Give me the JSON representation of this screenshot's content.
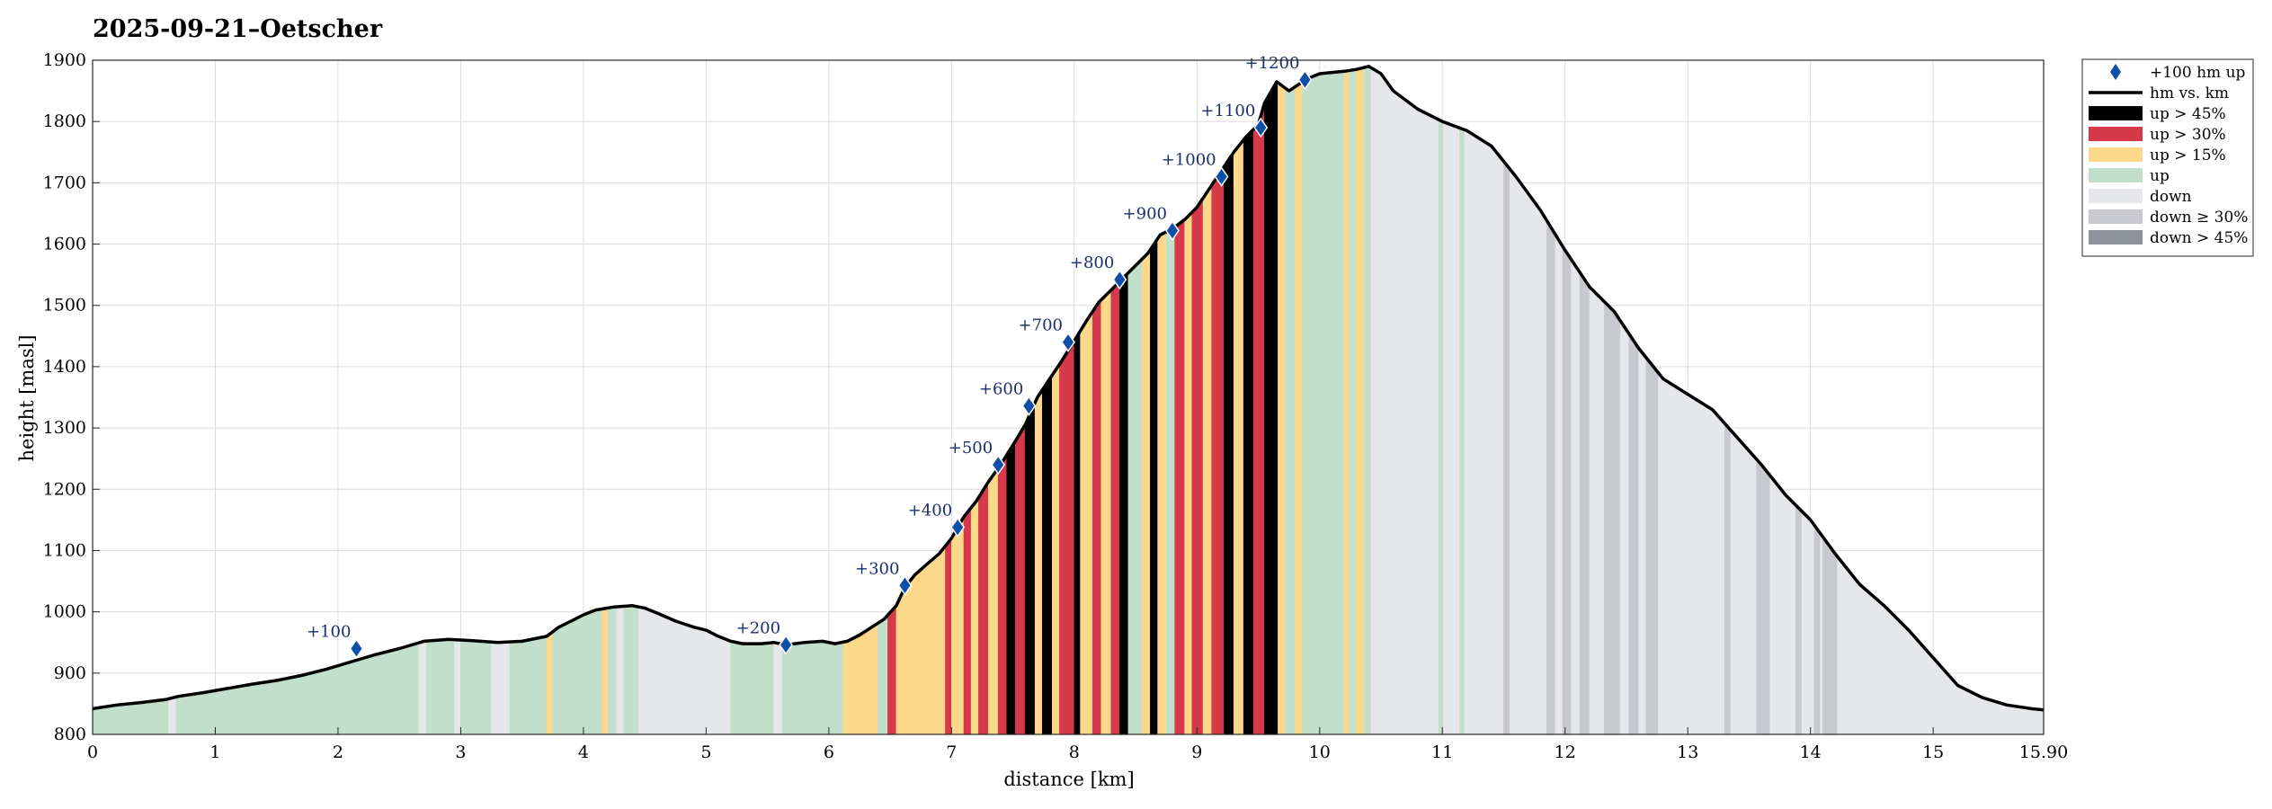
{
  "chart_data": {
    "type": "area",
    "title": "2025-09-21–Oetscher",
    "xlabel": "distance [km]",
    "ylabel": "height [masl]",
    "xlim": [
      0,
      15.9
    ],
    "ylim": [
      800,
      1900
    ],
    "grid": true,
    "legend_position": "outside-top-right",
    "xticks": [
      0,
      1,
      2,
      3,
      4,
      5,
      6,
      7,
      8,
      9,
      10,
      11,
      12,
      13,
      14,
      15,
      15.9
    ],
    "xtick_labels": [
      "0",
      "1",
      "2",
      "3",
      "4",
      "5",
      "6",
      "7",
      "8",
      "9",
      "10",
      "11",
      "12",
      "13",
      "14",
      "15",
      "15.90"
    ],
    "yticks": [
      800,
      900,
      1000,
      1100,
      1200,
      1300,
      1400,
      1500,
      1600,
      1700,
      1800,
      1900
    ],
    "ytick_labels": [
      "800",
      "900",
      "1000",
      "1100",
      "1200",
      "1300",
      "1400",
      "1500",
      "1600",
      "1700",
      "1800",
      "1900"
    ],
    "legend": [
      {
        "label": "+100 hm up",
        "kind": "marker",
        "color": "#0f4fa8"
      },
      {
        "label": "hm vs. km",
        "kind": "line",
        "color": "#000000"
      },
      {
        "label": "up > 45%",
        "kind": "patch",
        "color": "#000000"
      },
      {
        "label": "up > 30%",
        "kind": "patch",
        "color": "#d63a4a"
      },
      {
        "label": "up > 15%",
        "kind": "patch",
        "color": "#fcd98a"
      },
      {
        "label": "up",
        "kind": "patch",
        "color": "#c2dfcb"
      },
      {
        "label": "down",
        "kind": "patch",
        "color": "#e6e7ea"
      },
      {
        "label": "down ≥ 30%",
        "kind": "patch",
        "color": "#c8c9cf"
      },
      {
        "label": "down > 45%",
        "kind": "patch",
        "color": "#8e929c"
      }
    ],
    "category_colors": {
      "up45": "#000000",
      "up30": "#d63a4a",
      "up15": "#fcd98a",
      "up": "#c2dfcb",
      "down": "#e6e7ea",
      "down30": "#c8c9cf",
      "down45": "#8e929c"
    },
    "profile": [
      [
        0,
        842
      ],
      [
        0.1,
        845
      ],
      [
        0.2,
        848
      ],
      [
        0.4,
        852
      ],
      [
        0.6,
        857
      ],
      [
        0.7,
        862
      ],
      [
        0.9,
        868
      ],
      [
        1.1,
        875
      ],
      [
        1.3,
        882
      ],
      [
        1.5,
        888
      ],
      [
        1.7,
        896
      ],
      [
        1.9,
        906
      ],
      [
        2.1,
        918
      ],
      [
        2.3,
        930
      ],
      [
        2.5,
        940
      ],
      [
        2.7,
        952
      ],
      [
        2.9,
        955
      ],
      [
        3.1,
        953
      ],
      [
        3.3,
        950
      ],
      [
        3.5,
        952
      ],
      [
        3.7,
        960
      ],
      [
        3.8,
        975
      ],
      [
        3.9,
        985
      ],
      [
        4.0,
        995
      ],
      [
        4.1,
        1003
      ],
      [
        4.25,
        1008
      ],
      [
        4.4,
        1010
      ],
      [
        4.5,
        1006
      ],
      [
        4.6,
        998
      ],
      [
        4.75,
        985
      ],
      [
        4.9,
        975
      ],
      [
        5.0,
        970
      ],
      [
        5.1,
        960
      ],
      [
        5.2,
        952
      ],
      [
        5.3,
        948
      ],
      [
        5.45,
        948
      ],
      [
        5.55,
        950
      ],
      [
        5.65,
        946
      ],
      [
        5.8,
        950
      ],
      [
        5.95,
        952
      ],
      [
        6.05,
        948
      ],
      [
        6.15,
        952
      ],
      [
        6.25,
        962
      ],
      [
        6.35,
        975
      ],
      [
        6.45,
        988
      ],
      [
        6.55,
        1010
      ],
      [
        6.62,
        1040
      ],
      [
        6.7,
        1060
      ],
      [
        6.8,
        1078
      ],
      [
        6.9,
        1095
      ],
      [
        7.0,
        1120
      ],
      [
        7.1,
        1155
      ],
      [
        7.2,
        1180
      ],
      [
        7.3,
        1212
      ],
      [
        7.4,
        1240
      ],
      [
        7.5,
        1272
      ],
      [
        7.6,
        1305
      ],
      [
        7.7,
        1350
      ],
      [
        7.8,
        1380
      ],
      [
        7.9,
        1410
      ],
      [
        8.0,
        1442
      ],
      [
        8.1,
        1475
      ],
      [
        8.2,
        1505
      ],
      [
        8.3,
        1525
      ],
      [
        8.4,
        1545
      ],
      [
        8.5,
        1565
      ],
      [
        8.6,
        1585
      ],
      [
        8.7,
        1615
      ],
      [
        8.8,
        1625
      ],
      [
        8.9,
        1640
      ],
      [
        9.0,
        1660
      ],
      [
        9.1,
        1690
      ],
      [
        9.2,
        1720
      ],
      [
        9.3,
        1750
      ],
      [
        9.4,
        1775
      ],
      [
        9.5,
        1795
      ],
      [
        9.55,
        1830
      ],
      [
        9.65,
        1865
      ],
      [
        9.75,
        1850
      ],
      [
        9.9,
        1870
      ],
      [
        10.0,
        1878
      ],
      [
        10.2,
        1882
      ],
      [
        10.3,
        1885
      ],
      [
        10.4,
        1890
      ],
      [
        10.5,
        1878
      ],
      [
        10.6,
        1850
      ],
      [
        10.8,
        1820
      ],
      [
        11.0,
        1800
      ],
      [
        11.2,
        1785
      ],
      [
        11.4,
        1760
      ],
      [
        11.6,
        1710
      ],
      [
        11.8,
        1655
      ],
      [
        12.0,
        1590
      ],
      [
        12.2,
        1530
      ],
      [
        12.4,
        1490
      ],
      [
        12.6,
        1430
      ],
      [
        12.8,
        1380
      ],
      [
        13.0,
        1355
      ],
      [
        13.2,
        1330
      ],
      [
        13.4,
        1285
      ],
      [
        13.6,
        1240
      ],
      [
        13.8,
        1190
      ],
      [
        14.0,
        1150
      ],
      [
        14.2,
        1095
      ],
      [
        14.4,
        1045
      ],
      [
        14.6,
        1010
      ],
      [
        14.8,
        970
      ],
      [
        15.0,
        925
      ],
      [
        15.2,
        880
      ],
      [
        15.4,
        860
      ],
      [
        15.6,
        848
      ],
      [
        15.8,
        842
      ],
      [
        15.9,
        840
      ]
    ],
    "segments": [
      [
        0,
        0.62,
        "up"
      ],
      [
        0.62,
        0.68,
        "down"
      ],
      [
        0.68,
        2.66,
        "up"
      ],
      [
        2.66,
        2.72,
        "down"
      ],
      [
        2.72,
        2.95,
        "up"
      ],
      [
        2.95,
        3.0,
        "down"
      ],
      [
        3.0,
        3.25,
        "up"
      ],
      [
        3.25,
        3.4,
        "down"
      ],
      [
        3.4,
        3.7,
        "up"
      ],
      [
        3.7,
        3.75,
        "up15"
      ],
      [
        3.75,
        4.15,
        "up"
      ],
      [
        4.15,
        4.2,
        "up15"
      ],
      [
        4.2,
        4.27,
        "up"
      ],
      [
        4.27,
        4.33,
        "down"
      ],
      [
        4.33,
        4.45,
        "up"
      ],
      [
        4.45,
        5.2,
        "down"
      ],
      [
        5.2,
        5.55,
        "up"
      ],
      [
        5.55,
        5.62,
        "down"
      ],
      [
        5.62,
        6.12,
        "up"
      ],
      [
        6.12,
        6.4,
        "up15"
      ],
      [
        6.4,
        6.48,
        "up"
      ],
      [
        6.48,
        6.55,
        "up30"
      ],
      [
        6.55,
        6.95,
        "up15"
      ],
      [
        6.95,
        7.0,
        "up30"
      ],
      [
        7.0,
        7.1,
        "up15"
      ],
      [
        7.1,
        7.16,
        "up30"
      ],
      [
        7.16,
        7.22,
        "up15"
      ],
      [
        7.22,
        7.3,
        "up30"
      ],
      [
        7.3,
        7.38,
        "up15"
      ],
      [
        7.38,
        7.45,
        "up30"
      ],
      [
        7.45,
        7.52,
        "up45"
      ],
      [
        7.52,
        7.6,
        "up30"
      ],
      [
        7.6,
        7.68,
        "up45"
      ],
      [
        7.68,
        7.74,
        "up15"
      ],
      [
        7.74,
        7.82,
        "up45"
      ],
      [
        7.82,
        7.88,
        "up15"
      ],
      [
        7.88,
        8.0,
        "up30"
      ],
      [
        8.0,
        8.05,
        "up45"
      ],
      [
        8.05,
        8.15,
        "up15"
      ],
      [
        8.15,
        8.22,
        "up30"
      ],
      [
        8.22,
        8.3,
        "up15"
      ],
      [
        8.3,
        8.37,
        "up30"
      ],
      [
        8.37,
        8.44,
        "up45"
      ],
      [
        8.44,
        8.55,
        "up"
      ],
      [
        8.55,
        8.62,
        "up15"
      ],
      [
        8.62,
        8.68,
        "up45"
      ],
      [
        8.68,
        8.75,
        "up15"
      ],
      [
        8.75,
        8.82,
        "up"
      ],
      [
        8.82,
        8.9,
        "up30"
      ],
      [
        8.9,
        8.96,
        "up15"
      ],
      [
        8.96,
        9.05,
        "up30"
      ],
      [
        9.05,
        9.12,
        "up15"
      ],
      [
        9.12,
        9.22,
        "up30"
      ],
      [
        9.22,
        9.3,
        "up45"
      ],
      [
        9.3,
        9.38,
        "up15"
      ],
      [
        9.38,
        9.46,
        "up45"
      ],
      [
        9.46,
        9.55,
        "up30"
      ],
      [
        9.55,
        9.66,
        "up45"
      ],
      [
        9.66,
        9.72,
        "up15"
      ],
      [
        9.72,
        9.8,
        "up"
      ],
      [
        9.8,
        9.86,
        "up15"
      ],
      [
        9.86,
        10.2,
        "up"
      ],
      [
        10.2,
        10.24,
        "up15"
      ],
      [
        10.24,
        10.3,
        "up"
      ],
      [
        10.3,
        10.36,
        "up15"
      ],
      [
        10.36,
        10.42,
        "up"
      ],
      [
        10.42,
        10.97,
        "down"
      ],
      [
        10.97,
        11.01,
        "up"
      ],
      [
        11.01,
        11.14,
        "down"
      ],
      [
        11.14,
        11.18,
        "up"
      ],
      [
        11.18,
        11.5,
        "down"
      ],
      [
        11.5,
        11.55,
        "down30"
      ],
      [
        11.55,
        11.85,
        "down"
      ],
      [
        11.85,
        11.92,
        "down30"
      ],
      [
        11.92,
        11.98,
        "down"
      ],
      [
        11.98,
        12.05,
        "down30"
      ],
      [
        12.05,
        12.12,
        "down"
      ],
      [
        12.12,
        12.2,
        "down30"
      ],
      [
        12.2,
        12.32,
        "down"
      ],
      [
        12.32,
        12.45,
        "down30"
      ],
      [
        12.45,
        12.52,
        "down"
      ],
      [
        12.52,
        12.6,
        "down30"
      ],
      [
        12.6,
        12.66,
        "down"
      ],
      [
        12.66,
        12.76,
        "down30"
      ],
      [
        12.76,
        13.3,
        "down"
      ],
      [
        13.3,
        13.35,
        "down30"
      ],
      [
        13.35,
        13.56,
        "down"
      ],
      [
        13.56,
        13.67,
        "down30"
      ],
      [
        13.67,
        13.88,
        "down"
      ],
      [
        13.88,
        13.93,
        "down30"
      ],
      [
        13.93,
        14.03,
        "down"
      ],
      [
        14.03,
        14.08,
        "down30"
      ],
      [
        14.08,
        14.1,
        "down"
      ],
      [
        14.1,
        14.22,
        "down30"
      ],
      [
        14.22,
        15.9,
        "down"
      ]
    ],
    "markers": [
      {
        "label": "+100",
        "x": 2.15,
        "y": 940
      },
      {
        "label": "+200",
        "x": 5.65,
        "y": 946
      },
      {
        "label": "+300",
        "x": 6.62,
        "y": 1043
      },
      {
        "label": "+400",
        "x": 7.05,
        "y": 1138
      },
      {
        "label": "+500",
        "x": 7.38,
        "y": 1240
      },
      {
        "label": "+600",
        "x": 7.63,
        "y": 1336
      },
      {
        "label": "+700",
        "x": 7.95,
        "y": 1440
      },
      {
        "label": "+800",
        "x": 8.37,
        "y": 1542
      },
      {
        "label": "+900",
        "x": 8.8,
        "y": 1622
      },
      {
        "label": "+1000",
        "x": 9.2,
        "y": 1710
      },
      {
        "label": "+1100",
        "x": 9.52,
        "y": 1790
      },
      {
        "label": "+1200",
        "x": 9.88,
        "y": 1868
      }
    ]
  }
}
